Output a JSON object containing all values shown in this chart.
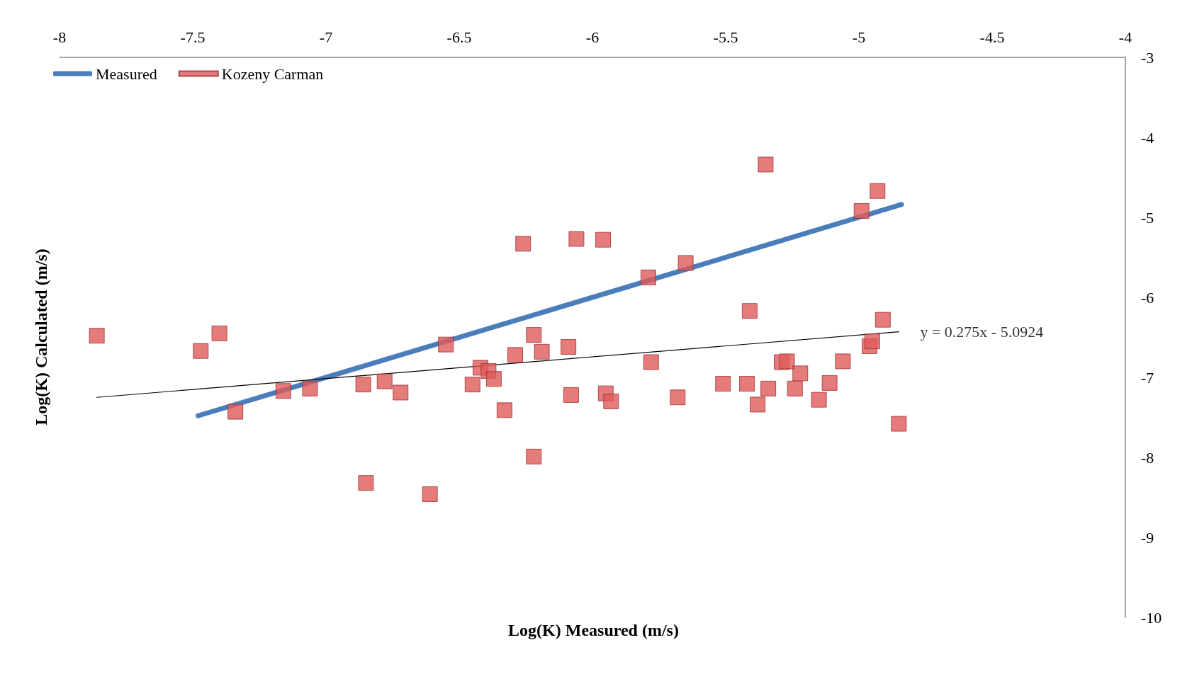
{
  "chart_data": {
    "type": "scatter",
    "xlabel": "Log(K) Measured (m/s)",
    "ylabel": "Log(K) Calculated (m/s)",
    "xlim": [
      -8,
      -4
    ],
    "xticks": [
      -8,
      -7.5,
      -7,
      -6.5,
      -6,
      -5.5,
      -5,
      -4.5,
      -4
    ],
    "ylim": [
      -10,
      -3
    ],
    "yticks": [
      -10,
      -9,
      -8,
      -7,
      -6,
      -5,
      -4,
      -3
    ],
    "grid": false,
    "legend": "top left",
    "annotations": [
      {
        "text": "y = 0.275x - 5.0924",
        "x": -4.85,
        "y": -6.43
      }
    ],
    "series": [
      {
        "name": "Measured",
        "type": "line",
        "color": "#4a7ebb",
        "marker": "none",
        "line_style": "solid",
        "x": [
          -7.48,
          -4.84
        ],
        "values": [
          -7.48,
          -4.84
        ]
      },
      {
        "name": "Kozeny Carman",
        "color": "#e05a5a",
        "marker": "square",
        "x": [
          -7.86,
          -7.47,
          -7.4,
          -7.34,
          -7.16,
          -7.06,
          -6.86,
          -6.85,
          -6.78,
          -6.72,
          -6.61,
          -6.55,
          -6.45,
          -6.42,
          -6.39,
          -6.37,
          -6.33,
          -6.29,
          -6.26,
          -6.22,
          -6.22,
          -6.19,
          -6.09,
          -6.08,
          -6.06,
          -5.96,
          -5.95,
          -5.93,
          -5.79,
          -5.78,
          -5.68,
          -5.65,
          -5.51,
          -5.42,
          -5.41,
          -5.38,
          -5.35,
          -5.34,
          -5.29,
          -5.27,
          -5.24,
          -5.22,
          -5.15,
          -5.11,
          -5.06,
          -4.99,
          -4.96,
          -4.95,
          -4.93,
          -4.91,
          -4.85
        ],
        "values": [
          -6.48,
          -6.67,
          -6.45,
          -7.43,
          -7.17,
          -7.14,
          -7.09,
          -8.32,
          -7.05,
          -7.19,
          -8.46,
          -6.59,
          -7.09,
          -6.88,
          -6.92,
          -7.02,
          -7.41,
          -6.72,
          -5.33,
          -6.47,
          -7.99,
          -6.68,
          -6.62,
          -7.22,
          -5.27,
          -5.28,
          -7.2,
          -7.3,
          -5.75,
          -6.81,
          -7.25,
          -5.57,
          -7.08,
          -7.08,
          -6.17,
          -7.34,
          -4.34,
          -7.14,
          -6.81,
          -6.8,
          -7.14,
          -6.95,
          -7.28,
          -7.07,
          -6.8,
          -4.92,
          -6.61,
          -6.55,
          -4.67,
          -6.28,
          -7.58
        ]
      },
      {
        "type": "line",
        "color": "#000000",
        "marker": "none",
        "line_style": "solid",
        "x": [
          -7.86,
          -4.85
        ],
        "values": [
          -7.25,
          -6.43
        ]
      }
    ]
  }
}
